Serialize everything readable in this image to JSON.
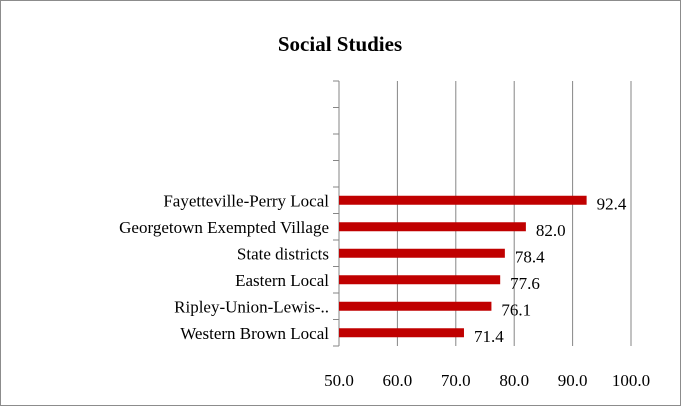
{
  "chart_data": {
    "type": "bar",
    "orientation": "horizontal",
    "title": "Social Studies",
    "categories": [
      "Fayetteville-Perry Local",
      "Georgetown Exempted Village",
      "State districts",
      "Eastern Local",
      "Ripley-Union-Lewis-..",
      "Western Brown Local"
    ],
    "values": [
      92.4,
      82.0,
      78.4,
      77.6,
      76.1,
      71.4
    ],
    "value_labels": [
      "92.4",
      "82.0",
      "78.4",
      "77.6",
      "76.1",
      "71.4"
    ],
    "xlim": [
      50,
      100
    ],
    "x_ticks": [
      50,
      60,
      70,
      80,
      90,
      100
    ],
    "x_tick_labels": [
      "50.0",
      "60.0",
      "70.0",
      "80.0",
      "90.0",
      "100.0"
    ],
    "empty_category_slots": 4,
    "grid": true,
    "legend": "none",
    "colors": {
      "bar": "#c00000",
      "grid": "#868686",
      "axis": "#868686",
      "border": "#8c8c8c"
    }
  }
}
